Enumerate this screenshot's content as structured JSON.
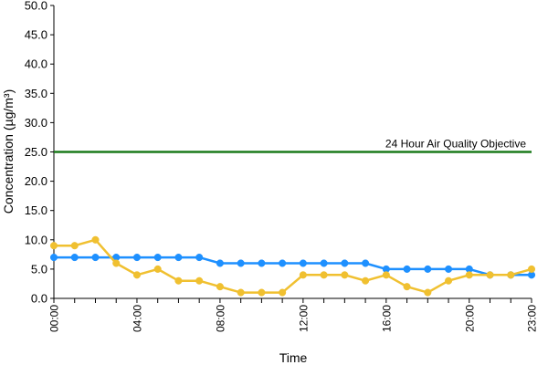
{
  "chart_data": {
    "type": "line",
    "xlabel": "Time",
    "ylabel": "Concentration (µg/m³)",
    "ylim": [
      0,
      50
    ],
    "yticks": [
      "0.0",
      "5.0",
      "10.0",
      "15.0",
      "20.0",
      "25.0",
      "30.0",
      "35.0",
      "40.0",
      "45.0",
      "50.0"
    ],
    "x": [
      "00:00",
      "01:00",
      "02:00",
      "03:00",
      "04:00",
      "05:00",
      "06:00",
      "07:00",
      "08:00",
      "09:00",
      "10:00",
      "11:00",
      "12:00",
      "13:00",
      "14:00",
      "15:00",
      "16:00",
      "17:00",
      "18:00",
      "19:00",
      "20:00",
      "21:00",
      "22:00",
      "23:00"
    ],
    "xtick_labels": [
      "00:00",
      "04:00",
      "08:00",
      "12:00",
      "16:00",
      "20:00",
      "23:00"
    ],
    "grid": false,
    "series": [
      {
        "color": "#1e90ff",
        "values": [
          7,
          7,
          7,
          7,
          7,
          7,
          7,
          7,
          6,
          6,
          6,
          6,
          6,
          6,
          6,
          6,
          5,
          5,
          5,
          5,
          5,
          4,
          4,
          4
        ]
      },
      {
        "color": "#f0c030",
        "values": [
          9,
          9,
          10,
          6,
          4,
          5,
          3,
          3,
          2,
          1,
          1,
          1,
          4,
          4,
          4,
          3,
          4,
          2,
          1,
          3,
          4,
          4,
          4,
          5
        ]
      }
    ],
    "reference_line": {
      "value": 25,
      "label": "24 Hour Air Quality Objective",
      "color": "#1a7a1a"
    }
  }
}
